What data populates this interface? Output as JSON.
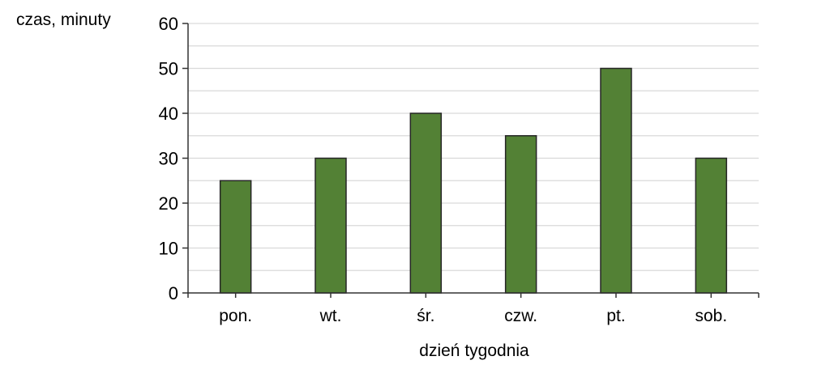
{
  "chart_data": {
    "type": "bar",
    "title": "",
    "ylabel": "czas, minuty",
    "xlabel": "dzień tygodnia",
    "categories": [
      "pon.",
      "wt.",
      "śr.",
      "czw.",
      "pt.",
      "sob."
    ],
    "values": [
      25,
      30,
      40,
      35,
      50,
      30
    ],
    "ylim": [
      0,
      60
    ],
    "ytick_step": 10,
    "grid_step": 5,
    "grid": true,
    "legend": "none",
    "colors": {
      "bar_fill": "#538135",
      "bar_border": "#262626",
      "gridline": "#d9d9d9",
      "axis": "#333333",
      "text": "#000000",
      "background": "#ffffff"
    }
  }
}
